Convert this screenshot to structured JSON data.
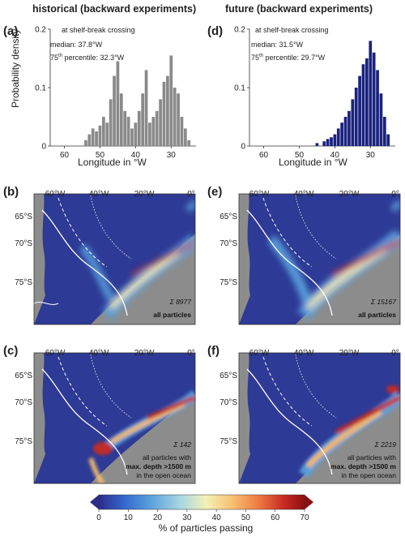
{
  "columns": {
    "left_title": "historical (backward experiments)",
    "right_title": "future (backward experiments)"
  },
  "panels": {
    "a": {
      "label": "(a)",
      "caption": "at shelf-break crossing",
      "median": "median: 37.8°W",
      "p75_prefix": "75",
      "p75_sup": "th",
      "p75_suffix": " percentile: 32.3°W"
    },
    "d": {
      "label": "(d)",
      "caption": "at shelf-break crossing",
      "median": "median: 31.5°W",
      "p75_prefix": "75",
      "p75_sup": "th",
      "p75_suffix": " percentile: 29.7°W"
    },
    "b": {
      "label": "(b)",
      "sum": "Σ 8977",
      "subset": "all particles",
      "subset_extra": "",
      "subset_extra2": ""
    },
    "e": {
      "label": "(e)",
      "sum": "Σ 15167",
      "subset": "all particles",
      "subset_extra": "",
      "subset_extra2": ""
    },
    "c": {
      "label": "(c)",
      "sum": "Σ 142",
      "subset_pre": "all particles with",
      "subset": "max. depth >1500 m",
      "subset_extra": "in the open ocean"
    },
    "f": {
      "label": "(f)",
      "sum": "Σ 2219",
      "subset_pre": "all particles with",
      "subset": "max. depth >1500 m",
      "subset_extra": "in the open ocean"
    }
  },
  "map_axes": {
    "lon_ticks": [
      "60°W",
      "40°W",
      "20°W",
      "0°"
    ],
    "lat_ticks": [
      "65°S",
      "70°S",
      "75°S"
    ]
  },
  "colorbar": {
    "label": "% of particles passing",
    "ticks": [
      "0",
      "10",
      "20",
      "30",
      "40",
      "50",
      "60",
      "70"
    ],
    "colors": [
      "#2c2c8c",
      "#3366cc",
      "#5aa0dc",
      "#a8d8e0",
      "#f4f0b8",
      "#f8c070",
      "#ec7840",
      "#c82a24",
      "#8c1010"
    ]
  },
  "chart_data": [
    {
      "type": "bar",
      "panel": "a",
      "xlabel": "Longitude in °W",
      "ylabel": "Probability density",
      "xlim": [
        64,
        23
      ],
      "ylim": [
        0,
        0.2
      ],
      "yticks": [
        "0",
        "0.1",
        "0.2"
      ],
      "xticks": [
        "60",
        "50",
        "40",
        "30"
      ],
      "color": "#8a8a8a",
      "x": [
        54,
        53,
        52,
        51,
        50,
        49,
        48,
        47,
        46,
        45,
        44,
        43,
        42,
        41,
        40,
        39,
        38,
        37,
        36,
        35,
        34,
        33,
        32,
        31,
        30,
        29,
        28,
        27,
        26,
        25
      ],
      "values": [
        0.01,
        0.02,
        0.03,
        0.025,
        0.035,
        0.05,
        0.04,
        0.08,
        0.12,
        0.145,
        0.09,
        0.06,
        0.05,
        0.03,
        0.04,
        0.06,
        0.09,
        0.13,
        0.04,
        0.05,
        0.06,
        0.08,
        0.11,
        0.12,
        0.155,
        0.1,
        0.09,
        0.05,
        0.03,
        0.01
      ]
    },
    {
      "type": "bar",
      "panel": "d",
      "xlabel": "Longitude in °W",
      "ylabel": "",
      "xlim": [
        64,
        23
      ],
      "ylim": [
        0,
        0.2
      ],
      "yticks": [
        "0",
        "0.1",
        "0.2"
      ],
      "xticks": [
        "60",
        "50",
        "40",
        "30"
      ],
      "color": "#1a237e",
      "x": [
        45,
        43,
        42,
        41,
        40,
        39,
        38,
        37,
        36,
        35,
        34,
        33,
        32,
        31,
        30,
        29,
        28,
        27,
        26,
        25
      ],
      "values": [
        0.005,
        0.008,
        0.012,
        0.015,
        0.02,
        0.03,
        0.04,
        0.05,
        0.06,
        0.08,
        0.1,
        0.12,
        0.14,
        0.15,
        0.18,
        0.16,
        0.13,
        0.09,
        0.05,
        0.02
      ]
    }
  ]
}
